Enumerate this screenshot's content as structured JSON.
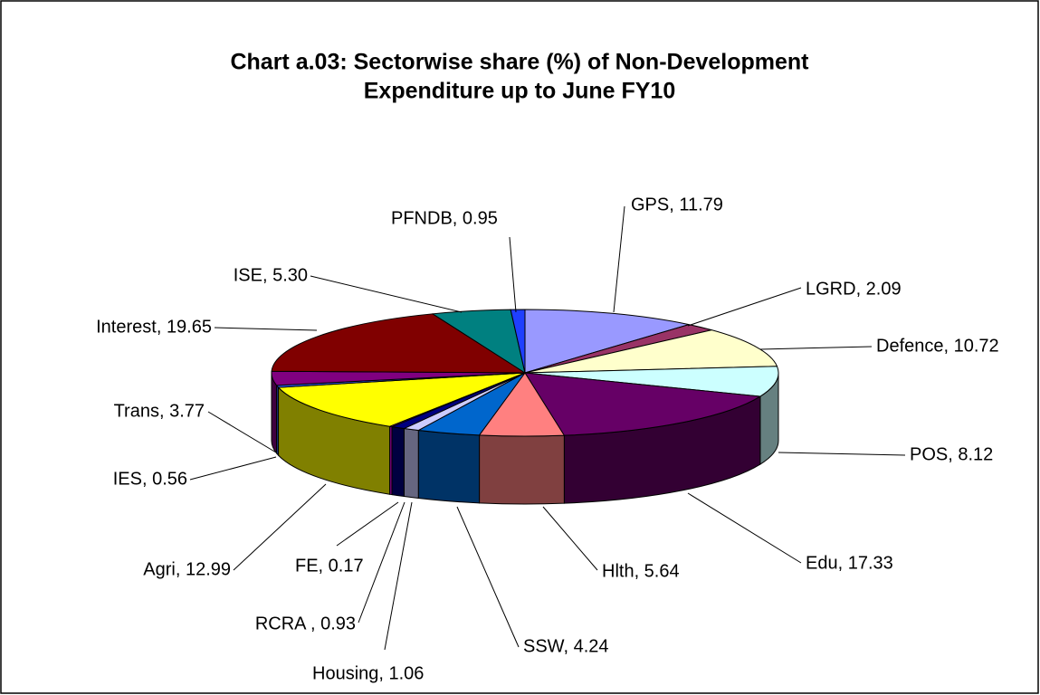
{
  "chart_data": {
    "type": "pie3d",
    "title": [
      "Chart a.03: Sectorwise share (%) of Non-Development",
      "Expenditure up to June FY10"
    ],
    "labels": [
      "GPS, 11.79",
      "LGRD, 2.09",
      "Defence, 10.72",
      "POS, 8.12",
      "Edu, 17.33",
      "Hlth, 5.64",
      "SSW, 4.24",
      "Housing, 1.06",
      "RCRA , 0.93",
      "FE, 0.17",
      "Agri, 12.99",
      "IES, 0.56",
      "Trans, 3.77",
      "Interest, 19.65",
      "ISE, 5.30",
      "PFNDB, 0.95"
    ],
    "values": [
      11.79,
      2.09,
      10.72,
      8.12,
      17.33,
      5.64,
      4.24,
      1.06,
      0.93,
      0.17,
      12.99,
      0.56,
      3.77,
      19.65,
      5.3,
      0.95
    ],
    "colors": [
      "#9999ff",
      "#993366",
      "#ffffcc",
      "#ccffff",
      "#660066",
      "#ff8080",
      "#0066cc",
      "#ccccff",
      "#000080",
      "#ff00ff",
      "#ffff00",
      "#3366ff",
      "#800080",
      "#800000",
      "#008080",
      "#1f3fff"
    ]
  }
}
